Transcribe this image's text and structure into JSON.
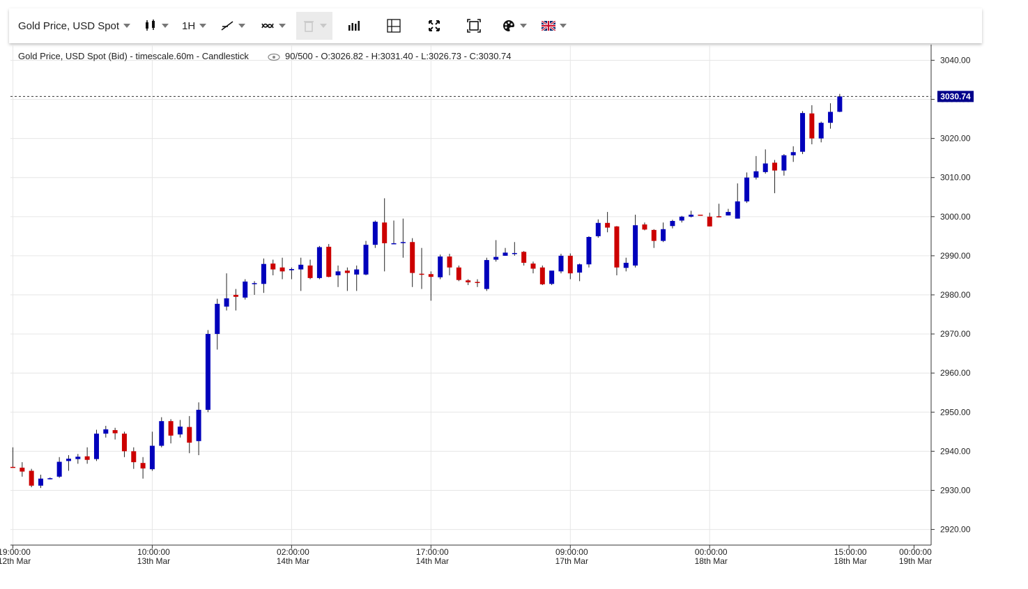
{
  "toolbar": {
    "instrument_label": "Gold Price, USD Spot",
    "timescale_label": "1H",
    "icons": [
      "candlestick-icon",
      "line-draw-icon",
      "indicator-icon",
      "trash-icon",
      "bars-icon",
      "crosshair-icon",
      "fullscreen-icon",
      "fit-icon",
      "palette-icon",
      "flag-uk-icon"
    ]
  },
  "colors": {
    "up": "#0000bb",
    "down": "#cc0000",
    "grid": "#e6e6e6",
    "price_label_bg": "#00008b"
  },
  "chart_data": {
    "type": "candlestick",
    "header_title": "Gold Price, USD Spot (Bid) - timescale.60m - Candlestick",
    "header_stats": "90/500 - O:3026.82 - H:3031.40 - L:3026.73 - C:3030.74",
    "current_price_label": "3030.74",
    "current_price": 3030.74,
    "ylim": [
      2916,
      3044
    ],
    "y_ticks": [
      "3040.00",
      "3030.00",
      "3020.00",
      "3010.00",
      "3000.00",
      "2990.00",
      "2980.00",
      "2970.00",
      "2960.00",
      "2950.00",
      "2940.00",
      "2930.00",
      "2920.00"
    ],
    "x_ticks": [
      {
        "time": "19:00:00",
        "date": "12th Mar",
        "index": 0
      },
      {
        "time": "10:00:00",
        "date": "13th Mar",
        "index": 15
      },
      {
        "time": "02:00:00",
        "date": "14th Mar",
        "index": 30
      },
      {
        "time": "17:00:00",
        "date": "14th Mar",
        "index": 45
      },
      {
        "time": "09:00:00",
        "date": "17th Mar",
        "index": 60
      },
      {
        "time": "00:00:00",
        "date": "18th Mar",
        "index": 75
      },
      {
        "time": "15:00:00",
        "date": "18th Mar",
        "index": 90
      },
      {
        "time": "00:00:00",
        "date": "19th Mar",
        "index": 97
      }
    ],
    "candles": [
      [
        2936.0,
        2941.0,
        2935.8,
        2935.9
      ],
      [
        2935.8,
        2937.2,
        2933.5,
        2934.8
      ],
      [
        2935.0,
        2935.5,
        2930.8,
        2931.2
      ],
      [
        2931.2,
        2934.0,
        2930.6,
        2933.0
      ],
      [
        2933.0,
        2933.3,
        2932.8,
        2933.1
      ],
      [
        2933.5,
        2938.5,
        2933.2,
        2937.3
      ],
      [
        2937.5,
        2939.0,
        2935.0,
        2938.1
      ],
      [
        2938.0,
        2939.3,
        2936.8,
        2938.6
      ],
      [
        2938.7,
        2941.0,
        2936.8,
        2937.8
      ],
      [
        2938.0,
        2945.5,
        2937.5,
        2944.5
      ],
      [
        2944.5,
        2946.5,
        2943.5,
        2945.6
      ],
      [
        2945.4,
        2946.0,
        2943.0,
        2944.6
      ],
      [
        2944.5,
        2945.0,
        2938.5,
        2940.0
      ],
      [
        2940.0,
        2941.0,
        2935.5,
        2937.2
      ],
      [
        2937.0,
        2938.5,
        2933.0,
        2935.6
      ],
      [
        2935.4,
        2945.0,
        2935.0,
        2941.4
      ],
      [
        2941.4,
        2948.7,
        2941.0,
        2947.7
      ],
      [
        2947.7,
        2948.2,
        2942.0,
        2944.0
      ],
      [
        2944.3,
        2948.0,
        2943.5,
        2946.3
      ],
      [
        2946.2,
        2949.0,
        2939.5,
        2942.2
      ],
      [
        2942.6,
        2952.5,
        2939.0,
        2950.6
      ],
      [
        2950.6,
        2971.0,
        2950.0,
        2970.0
      ],
      [
        2970.0,
        2979.0,
        2966.0,
        2977.7
      ],
      [
        2977.0,
        2985.5,
        2976.0,
        2979.1
      ],
      [
        2980.0,
        2981.5,
        2976.0,
        2979.5
      ],
      [
        2979.3,
        2984.0,
        2978.8,
        2983.4
      ],
      [
        2983.0,
        2983.5,
        2980.0,
        2983.0
      ],
      [
        2982.8,
        2989.3,
        2980.5,
        2987.9
      ],
      [
        2988.0,
        2989.0,
        2985.0,
        2986.5
      ],
      [
        2987.0,
        2989.5,
        2984.0,
        2986.0
      ],
      [
        2986.3,
        2987.0,
        2984.0,
        2986.6
      ],
      [
        2986.5,
        2989.5,
        2981.0,
        2987.7
      ],
      [
        2987.5,
        2989.0,
        2984.0,
        2984.3
      ],
      [
        2984.3,
        2992.5,
        2984.0,
        2992.2
      ],
      [
        2992.3,
        2993.0,
        2984.5,
        2984.6
      ],
      [
        2985.0,
        2987.5,
        2982.0,
        2986.0
      ],
      [
        2986.2,
        2987.0,
        2981.0,
        2985.6
      ],
      [
        2985.2,
        2987.5,
        2981.0,
        2986.5
      ],
      [
        2985.2,
        2993.8,
        2985.0,
        2992.8
      ],
      [
        2992.8,
        2999.0,
        2992.0,
        2998.7
      ],
      [
        2998.5,
        3004.7,
        2986.0,
        2993.2
      ],
      [
        2993.0,
        2999.0,
        2993.0,
        2993.2
      ],
      [
        2993.3,
        2999.5,
        2989.5,
        2993.5
      ],
      [
        2993.5,
        2994.5,
        2982.0,
        2985.6
      ],
      [
        2985.4,
        2992.0,
        2981.5,
        2985.3
      ],
      [
        2985.3,
        2986.0,
        2978.5,
        2984.6
      ],
      [
        2984.5,
        2990.3,
        2984.0,
        2989.8
      ],
      [
        2989.8,
        2990.5,
        2985.0,
        2987.0
      ],
      [
        2987.0,
        2987.5,
        2983.5,
        2983.8
      ],
      [
        2983.7,
        2984.0,
        2982.5,
        2983.2
      ],
      [
        2983.3,
        2984.0,
        2982.0,
        2983.2
      ],
      [
        2981.5,
        2989.5,
        2981.0,
        2988.9
      ],
      [
        2989.0,
        2994.0,
        2988.5,
        2989.7
      ],
      [
        2990.0,
        2992.0,
        2990.0,
        2990.8
      ],
      [
        2990.7,
        2993.5,
        2990.0,
        2990.7
      ],
      [
        2991.0,
        2991.2,
        2987.5,
        2988.2
      ],
      [
        2988.0,
        2988.5,
        2985.5,
        2986.7
      ],
      [
        2987.0,
        2987.5,
        2982.5,
        2982.7
      ],
      [
        2982.8,
        2986.0,
        2982.5,
        2986.2
      ],
      [
        2986.0,
        2990.5,
        2985.5,
        2990.0
      ],
      [
        2990.0,
        2990.6,
        2984.0,
        2985.5
      ],
      [
        2985.7,
        2988.0,
        2983.5,
        2987.8
      ],
      [
        2987.8,
        2995.0,
        2987.0,
        2994.8
      ],
      [
        2995.0,
        2999.3,
        2994.6,
        2998.4
      ],
      [
        2998.4,
        3001.2,
        2996.0,
        2997.2
      ],
      [
        2997.5,
        2997.6,
        2985.0,
        2987.0
      ],
      [
        2986.9,
        2989.5,
        2986.0,
        2988.2
      ],
      [
        2987.5,
        3000.5,
        2987.0,
        2997.8
      ],
      [
        2998.0,
        2998.5,
        2996.5,
        2996.7
      ],
      [
        2996.6,
        2996.8,
        2992.0,
        2993.8
      ],
      [
        2993.8,
        2998.5,
        2993.5,
        2996.8
      ],
      [
        2997.6,
        2999.2,
        2997.0,
        2998.9
      ],
      [
        2999.0,
        3000.2,
        2998.5,
        3000.0
      ],
      [
        3000.0,
        3001.5,
        2999.8,
        3000.5
      ],
      [
        3000.5,
        3000.5,
        3000.3,
        3000.4
      ],
      [
        3000.0,
        3001.0,
        2997.5,
        2997.5
      ],
      [
        3000.1,
        3003.3,
        2999.8,
        3000.0
      ],
      [
        3000.3,
        3002.0,
        3000.3,
        3001.2
      ],
      [
        2999.5,
        3008.5,
        2999.5,
        3003.9
      ],
      [
        3003.9,
        3011.3,
        3003.5,
        3010.0
      ],
      [
        3010.0,
        3015.5,
        3009.5,
        3011.6
      ],
      [
        3011.4,
        3017.2,
        3011.0,
        3013.6
      ],
      [
        3013.8,
        3014.5,
        3006.0,
        3011.8
      ],
      [
        3011.8,
        3016.0,
        3010.5,
        3015.7
      ],
      [
        3015.7,
        3018.0,
        3014.0,
        3016.5
      ],
      [
        3016.6,
        3027.0,
        3016.0,
        3026.5
      ],
      [
        3026.4,
        3028.5,
        3018.5,
        3020.0
      ],
      [
        3020.0,
        3024.3,
        3019.0,
        3024.0
      ],
      [
        3024.0,
        3029.0,
        3022.5,
        3026.8
      ],
      [
        3026.82,
        3031.4,
        3026.73,
        3030.74
      ]
    ]
  }
}
